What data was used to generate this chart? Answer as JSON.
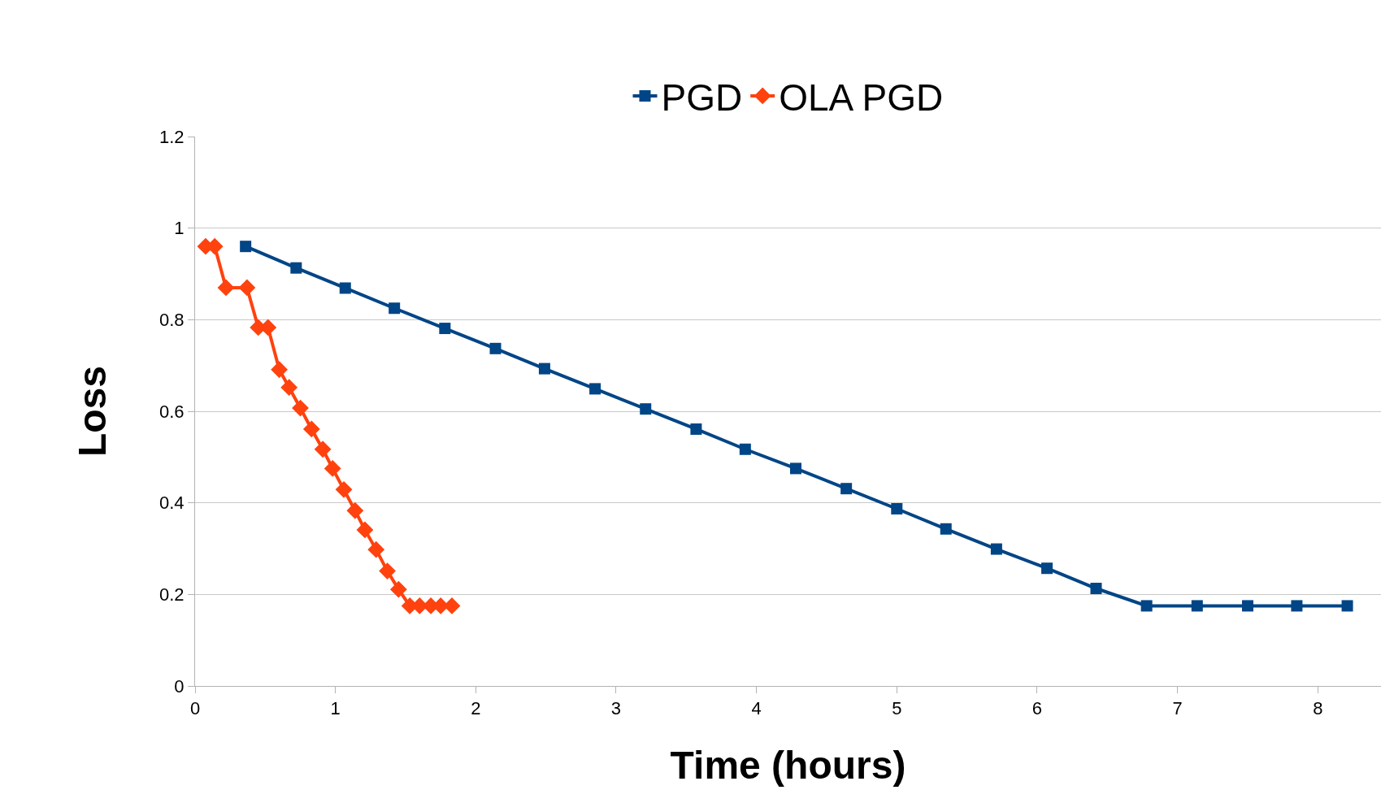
{
  "chart_data": {
    "type": "line",
    "xlabel": "Time (hours)",
    "ylabel": "Loss",
    "xlim": [
      0,
      8.45
    ],
    "ylim": [
      0,
      1.2
    ],
    "xticks": [
      0,
      1,
      2,
      3,
      4,
      5,
      6,
      7,
      8
    ],
    "yticks": [
      0,
      0.2,
      0.4,
      0.6,
      0.8,
      1,
      1.2
    ],
    "grid": "y",
    "legend": "top",
    "series": [
      {
        "name": "PGD",
        "color": "#004586",
        "marker": "square",
        "x": [
          0.36,
          0.72,
          1.07,
          1.42,
          1.78,
          2.14,
          2.49,
          2.85,
          3.21,
          3.57,
          3.92,
          4.28,
          4.64,
          5.0,
          5.35,
          5.71,
          6.07,
          6.42,
          6.78,
          7.14,
          7.5,
          7.85,
          8.21
        ],
        "values": [
          0.96,
          0.913,
          0.869,
          0.825,
          0.781,
          0.737,
          0.693,
          0.649,
          0.605,
          0.561,
          0.517,
          0.475,
          0.431,
          0.387,
          0.343,
          0.299,
          0.257,
          0.213,
          0.175,
          0.175,
          0.175,
          0.175,
          0.175
        ]
      },
      {
        "name": "OLA PGD",
        "color": "#ff420e",
        "marker": "diamond",
        "x": [
          0.075,
          0.14,
          0.22,
          0.37,
          0.45,
          0.52,
          0.6,
          0.67,
          0.75,
          0.83,
          0.91,
          0.98,
          1.06,
          1.14,
          1.21,
          1.29,
          1.37,
          1.45,
          1.53,
          1.6,
          1.68,
          1.75,
          1.83
        ],
        "values": [
          0.96,
          0.96,
          0.87,
          0.87,
          0.783,
          0.783,
          0.691,
          0.652,
          0.607,
          0.561,
          0.517,
          0.475,
          0.429,
          0.383,
          0.341,
          0.298,
          0.251,
          0.211,
          0.175,
          0.175,
          0.175,
          0.175,
          0.175
        ]
      }
    ]
  }
}
